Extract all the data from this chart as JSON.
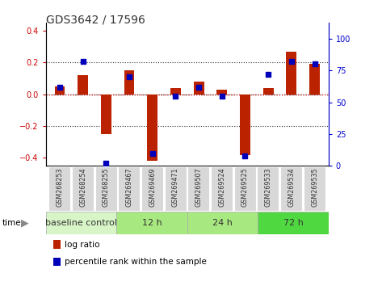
{
  "title": "GDS3642 / 17596",
  "samples": [
    "GSM268253",
    "GSM268254",
    "GSM268255",
    "GSM269467",
    "GSM269469",
    "GSM269471",
    "GSM269507",
    "GSM269524",
    "GSM269525",
    "GSM269533",
    "GSM269534",
    "GSM269535"
  ],
  "log_ratio": [
    0.05,
    0.12,
    -0.25,
    0.15,
    -0.42,
    0.04,
    0.08,
    0.03,
    -0.38,
    0.04,
    0.27,
    0.19
  ],
  "percentile_rank": [
    62,
    82,
    2,
    70,
    10,
    55,
    62,
    55,
    8,
    72,
    82,
    80
  ],
  "group_labels": [
    "baseline control",
    "12 h",
    "24 h",
    "72 h"
  ],
  "group_starts": [
    0,
    3,
    6,
    9
  ],
  "group_ends": [
    3,
    6,
    9,
    12
  ],
  "group_colors": [
    "#d8f5c8",
    "#a8e880",
    "#a8e880",
    "#50d840"
  ],
  "ylim_left": [
    -0.45,
    0.45
  ],
  "ylim_right": [
    0,
    112.5
  ],
  "yticks_left": [
    -0.4,
    -0.2,
    0.0,
    0.2,
    0.4
  ],
  "yticks_right": [
    0,
    25,
    50,
    75,
    100
  ],
  "bar_color": "#bb2200",
  "dot_color": "#0000bb",
  "dot_size": 25,
  "bg_color": "#ffffff",
  "title_fontsize": 10,
  "tick_fontsize": 7,
  "label_fontsize": 7.5,
  "group_fontsize": 8
}
